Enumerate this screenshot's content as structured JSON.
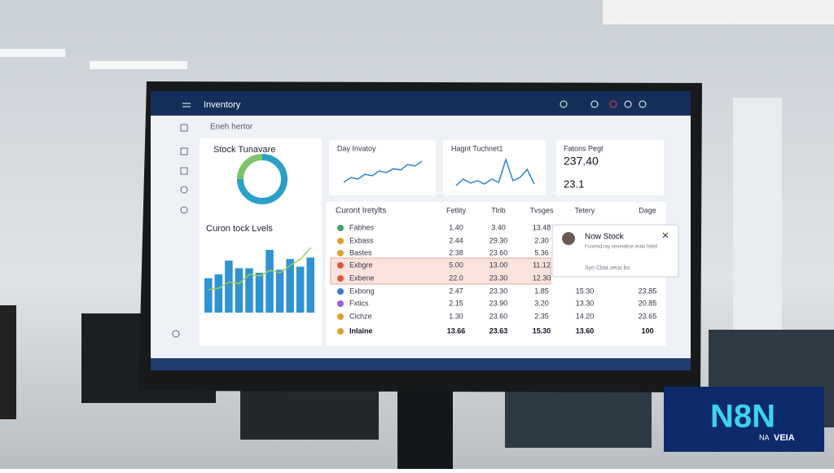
{
  "header": {
    "title": "Inventory",
    "search": "Eneh hertor"
  },
  "cards": [
    {
      "title": "Stock Tunavare"
    },
    {
      "title": "Curon tock Lvels"
    },
    {
      "title": "Day Invatoy"
    },
    {
      "title": "Hagnt Tuchnet1"
    },
    {
      "title": "Fatons Pegt",
      "value": "237.40",
      "subvalue": "23.1"
    }
  ],
  "table": {
    "title": "Curont Iretylts",
    "columns": [
      "Fetlity",
      "Tlrib",
      "Tvsges",
      "Tetery",
      "Dage"
    ],
    "rows": [
      [
        "Fabhes",
        "1.40",
        "3.40",
        "13.48"
      ],
      [
        "Exbass",
        "2.44",
        "29.30",
        "2.30"
      ],
      [
        "Bastes",
        "2.38",
        "23.60",
        "5.36"
      ],
      [
        "Exbgre",
        "5.00",
        "13.00",
        "11.12"
      ],
      [
        "Exbene",
        "22.0",
        "23.30",
        "12.30"
      ],
      [
        "Exbong",
        "2.47",
        "23.30",
        "1.85",
        "15.30",
        "23.85"
      ],
      [
        "Fxtics",
        "2.15",
        "23.90",
        "3.20",
        "13.30",
        "20.85"
      ],
      [
        "Cichze",
        "1.30",
        "23.60",
        "2.35",
        "14.20",
        "23.65"
      ],
      [
        "Inlaine",
        "13.66",
        "23.63",
        "15.30",
        "13.60",
        "100"
      ]
    ]
  },
  "popup": {
    "title": "Now Stock",
    "text": "Fuseind tay seoetaltse lealo fottel",
    "action": "Syn Cbta veus  bo"
  },
  "logo": {
    "text": "N8N",
    "sub1": "NA",
    "sub2": "VEIA"
  },
  "chart_data": [
    {
      "type": "bar",
      "ylim": [
        0,
        100
      ],
      "series": [
        {
          "color": "#2f93d1",
          "values": [
            45,
            50,
            68,
            58,
            58,
            52,
            82,
            56,
            70,
            60,
            72
          ]
        },
        {
          "type": "line",
          "color": "#9ccf5a",
          "values": [
            30,
            32,
            40,
            38,
            50,
            48,
            55,
            52,
            62,
            70,
            85
          ]
        }
      ]
    },
    {
      "type": "line",
      "ylim": [
        0,
        100
      ],
      "color": "#2b86c9",
      "values": [
        20,
        35,
        30,
        45,
        40,
        55,
        50,
        62,
        58,
        75,
        70,
        85
      ]
    },
    {
      "type": "line",
      "ylim": [
        0,
        100
      ],
      "color": "#2b86c9",
      "values": [
        10,
        30,
        18,
        25,
        15,
        30,
        20,
        90,
        25,
        35,
        60,
        15
      ]
    },
    {
      "type": "pie",
      "colors": [
        "#2aa0c8",
        "#7cc36a"
      ],
      "values": [
        75,
        25
      ]
    }
  ]
}
